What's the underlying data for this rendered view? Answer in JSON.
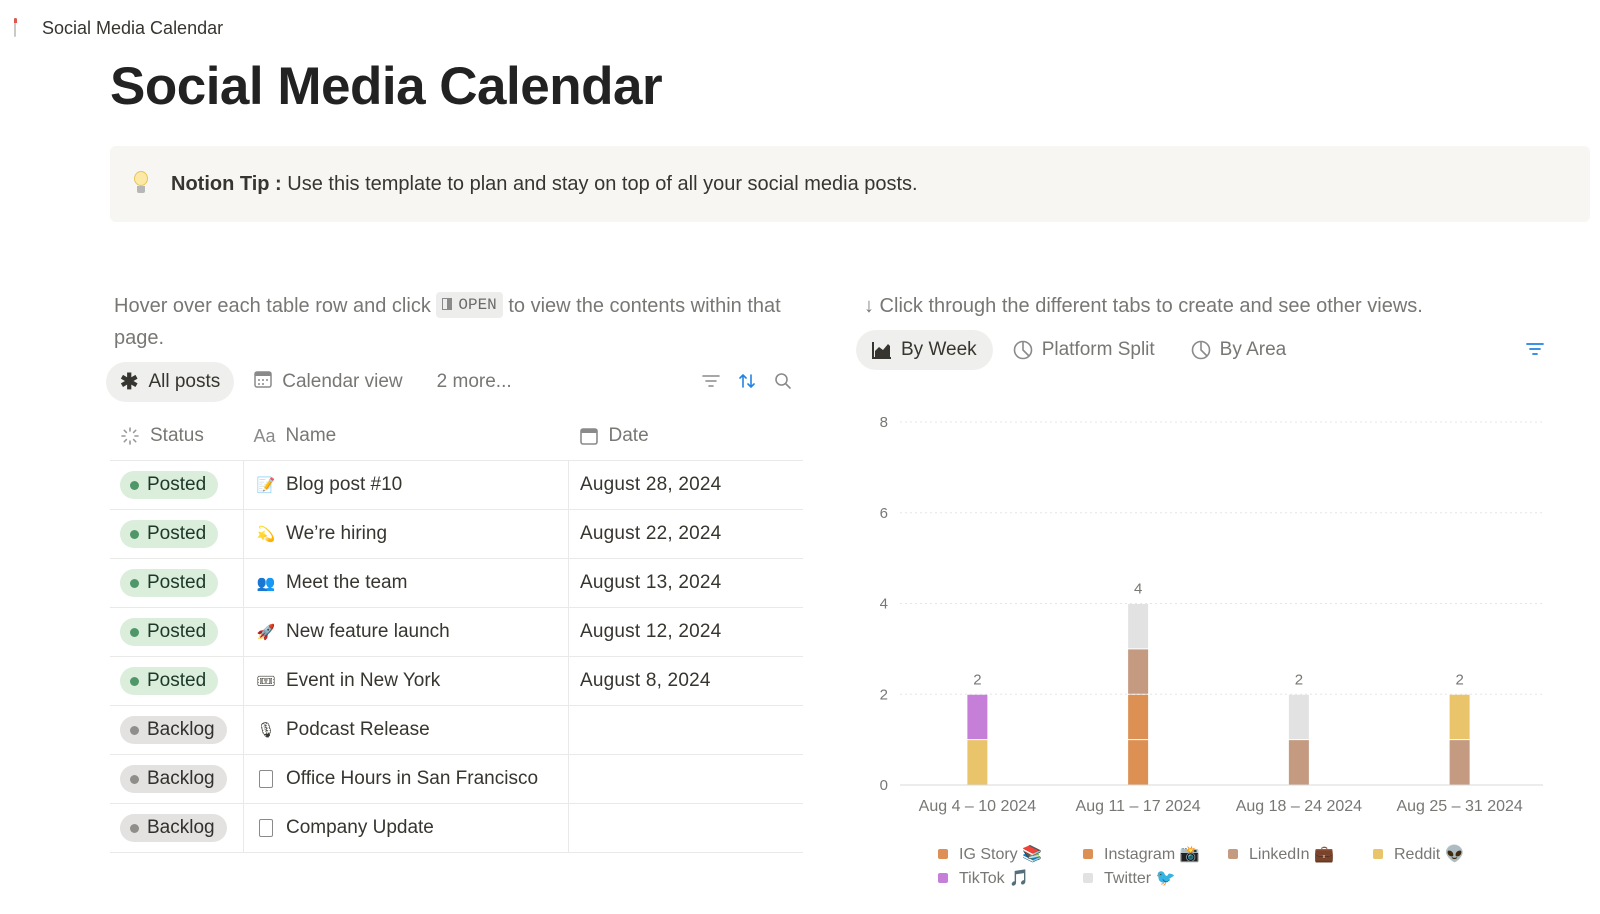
{
  "breadcrumb": {
    "page_title": "Social Media Calendar"
  },
  "page": {
    "title": "Social Media Calendar"
  },
  "callout": {
    "label": "Notion Tip :",
    "text": " Use this template to plan and stay on top of all your social media posts."
  },
  "left_hint": {
    "before": "Hover over each table row and click ",
    "key": "OPEN",
    "after": " to view the contents within that page."
  },
  "database": {
    "views": [
      {
        "label": "All posts",
        "icon": "asterisk-icon",
        "active": true
      },
      {
        "label": "Calendar view",
        "icon": "calendar-icon",
        "active": false
      },
      {
        "label": "2 more...",
        "icon": "",
        "active": false
      }
    ],
    "columns": {
      "status": "Status",
      "name": "Name",
      "date": "Date"
    },
    "rows": [
      {
        "status": "Posted",
        "emoji": "📝",
        "name": "Blog post #10",
        "date": "August 28, 2024"
      },
      {
        "status": "Posted",
        "emoji": "💫",
        "name": "We’re hiring",
        "date": "August 22, 2024"
      },
      {
        "status": "Posted",
        "emoji": "👥",
        "name": "Meet the team",
        "date": "August 13, 2024"
      },
      {
        "status": "Posted",
        "emoji": "🚀",
        "name": "New feature launch",
        "date": "August 12, 2024"
      },
      {
        "status": "Posted",
        "emoji": "🎟",
        "name": "Event in New York",
        "date": "August 8, 2024"
      },
      {
        "status": "Backlog",
        "emoji": "🎙",
        "name": "Podcast Release",
        "date": ""
      },
      {
        "status": "Backlog",
        "emoji": "",
        "name": "Office Hours in San Francisco",
        "date": ""
      },
      {
        "status": "Backlog",
        "emoji": "",
        "name": "Company Update",
        "date": ""
      }
    ]
  },
  "right_hint": {
    "text": "↓ Click through the different tabs to create and see other views."
  },
  "chart_views": [
    {
      "label": "By Week",
      "icon": "bar-chart-icon",
      "active": true
    },
    {
      "label": "Platform Split",
      "icon": "pie-chart-icon",
      "active": false
    },
    {
      "label": "By Area",
      "icon": "pie-chart-icon",
      "active": false
    }
  ],
  "colors": {
    "ig_story": "#dd8f56",
    "instagram": "#dc9053",
    "linkedin": "#c49a80",
    "reddit": "#e9c46a",
    "tiktok": "#c57fd9",
    "twitter": "#e2e2e2",
    "posted_bg": "#dbeddb",
    "backlog_bg": "#e3e2e0",
    "accent_blue": "#2383e2"
  },
  "chart_data": {
    "type": "bar",
    "stacked": true,
    "categories": [
      "Aug 4 – 10 2024",
      "Aug 11 – 17 2024",
      "Aug 18 – 24 2024",
      "Aug 25 – 31 2024"
    ],
    "ylim": [
      0,
      8
    ],
    "yticks": [
      0,
      2,
      4,
      6,
      8
    ],
    "grid": true,
    "legend_position": "bottom",
    "totals": [
      2,
      4,
      2,
      2
    ],
    "series": [
      {
        "name": "IG Story 📚",
        "color": "#dd8f56",
        "values": [
          0,
          0,
          0,
          0
        ]
      },
      {
        "name": "Instagram 📸",
        "color": "#dc9053",
        "values": [
          0,
          2,
          0,
          0
        ]
      },
      {
        "name": "LinkedIn 💼",
        "color": "#c49a80",
        "values": [
          0,
          1,
          1,
          1
        ]
      },
      {
        "name": "Reddit 👽",
        "color": "#e9c46a",
        "values": [
          1,
          0,
          0,
          1
        ]
      },
      {
        "name": "TikTok 🎵",
        "color": "#c57fd9",
        "values": [
          1,
          0,
          0,
          0
        ]
      },
      {
        "name": "Twitter 🐦",
        "color": "#e2e2e2",
        "values": [
          0,
          1,
          1,
          0
        ]
      }
    ]
  }
}
